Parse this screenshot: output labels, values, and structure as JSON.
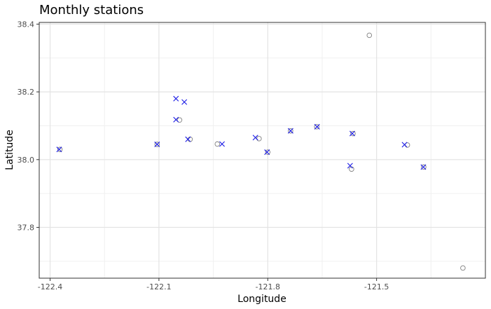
{
  "chart_data": {
    "type": "scatter",
    "title": "Monthly stations",
    "xlabel": "Longitude",
    "ylabel": "Latitude",
    "xlim": [
      -122.43,
      -121.2
    ],
    "ylim": [
      37.65,
      38.405
    ],
    "x_ticks": [
      -122.4,
      -122.1,
      -121.8,
      -121.5
    ],
    "x_tick_labels": [
      "-122.4",
      "-122.1",
      "-121.8",
      "-121.5"
    ],
    "y_ticks": [
      37.8,
      38.0,
      38.2,
      38.4
    ],
    "y_tick_labels": [
      "37.8",
      "38.0",
      "38.2",
      "38.4"
    ],
    "grid": true,
    "legend": "none",
    "series": [
      {
        "marker": "circle",
        "color": "#808080",
        "points": [
          {
            "x": -122.373,
            "y": 38.03
          },
          {
            "x": -122.105,
            "y": 38.045
          },
          {
            "x": -122.043,
            "y": 38.117
          },
          {
            "x": -122.014,
            "y": 38.06
          },
          {
            "x": -121.939,
            "y": 38.046
          },
          {
            "x": -121.824,
            "y": 38.062
          },
          {
            "x": -121.8,
            "y": 38.022
          },
          {
            "x": -121.737,
            "y": 38.085
          },
          {
            "x": -121.665,
            "y": 38.097
          },
          {
            "x": -121.569,
            "y": 37.972
          },
          {
            "x": -121.565,
            "y": 38.077
          },
          {
            "x": -121.52,
            "y": 38.367
          },
          {
            "x": -121.415,
            "y": 38.043
          },
          {
            "x": -121.37,
            "y": 37.978
          },
          {
            "x": -121.262,
            "y": 37.68
          }
        ]
      },
      {
        "marker": "x",
        "color": "#1a1ae6",
        "points": [
          {
            "x": -122.375,
            "y": 38.03
          },
          {
            "x": -122.105,
            "y": 38.045
          },
          {
            "x": -122.053,
            "y": 38.18
          },
          {
            "x": -122.03,
            "y": 38.17
          },
          {
            "x": -122.053,
            "y": 38.118
          },
          {
            "x": -122.02,
            "y": 38.06
          },
          {
            "x": -121.926,
            "y": 38.046
          },
          {
            "x": -121.834,
            "y": 38.065
          },
          {
            "x": -121.802,
            "y": 38.022
          },
          {
            "x": -121.737,
            "y": 38.085
          },
          {
            "x": -121.664,
            "y": 38.097
          },
          {
            "x": -121.573,
            "y": 37.982
          },
          {
            "x": -121.567,
            "y": 38.077
          },
          {
            "x": -121.423,
            "y": 38.044
          },
          {
            "x": -121.371,
            "y": 37.978
          }
        ]
      }
    ]
  }
}
